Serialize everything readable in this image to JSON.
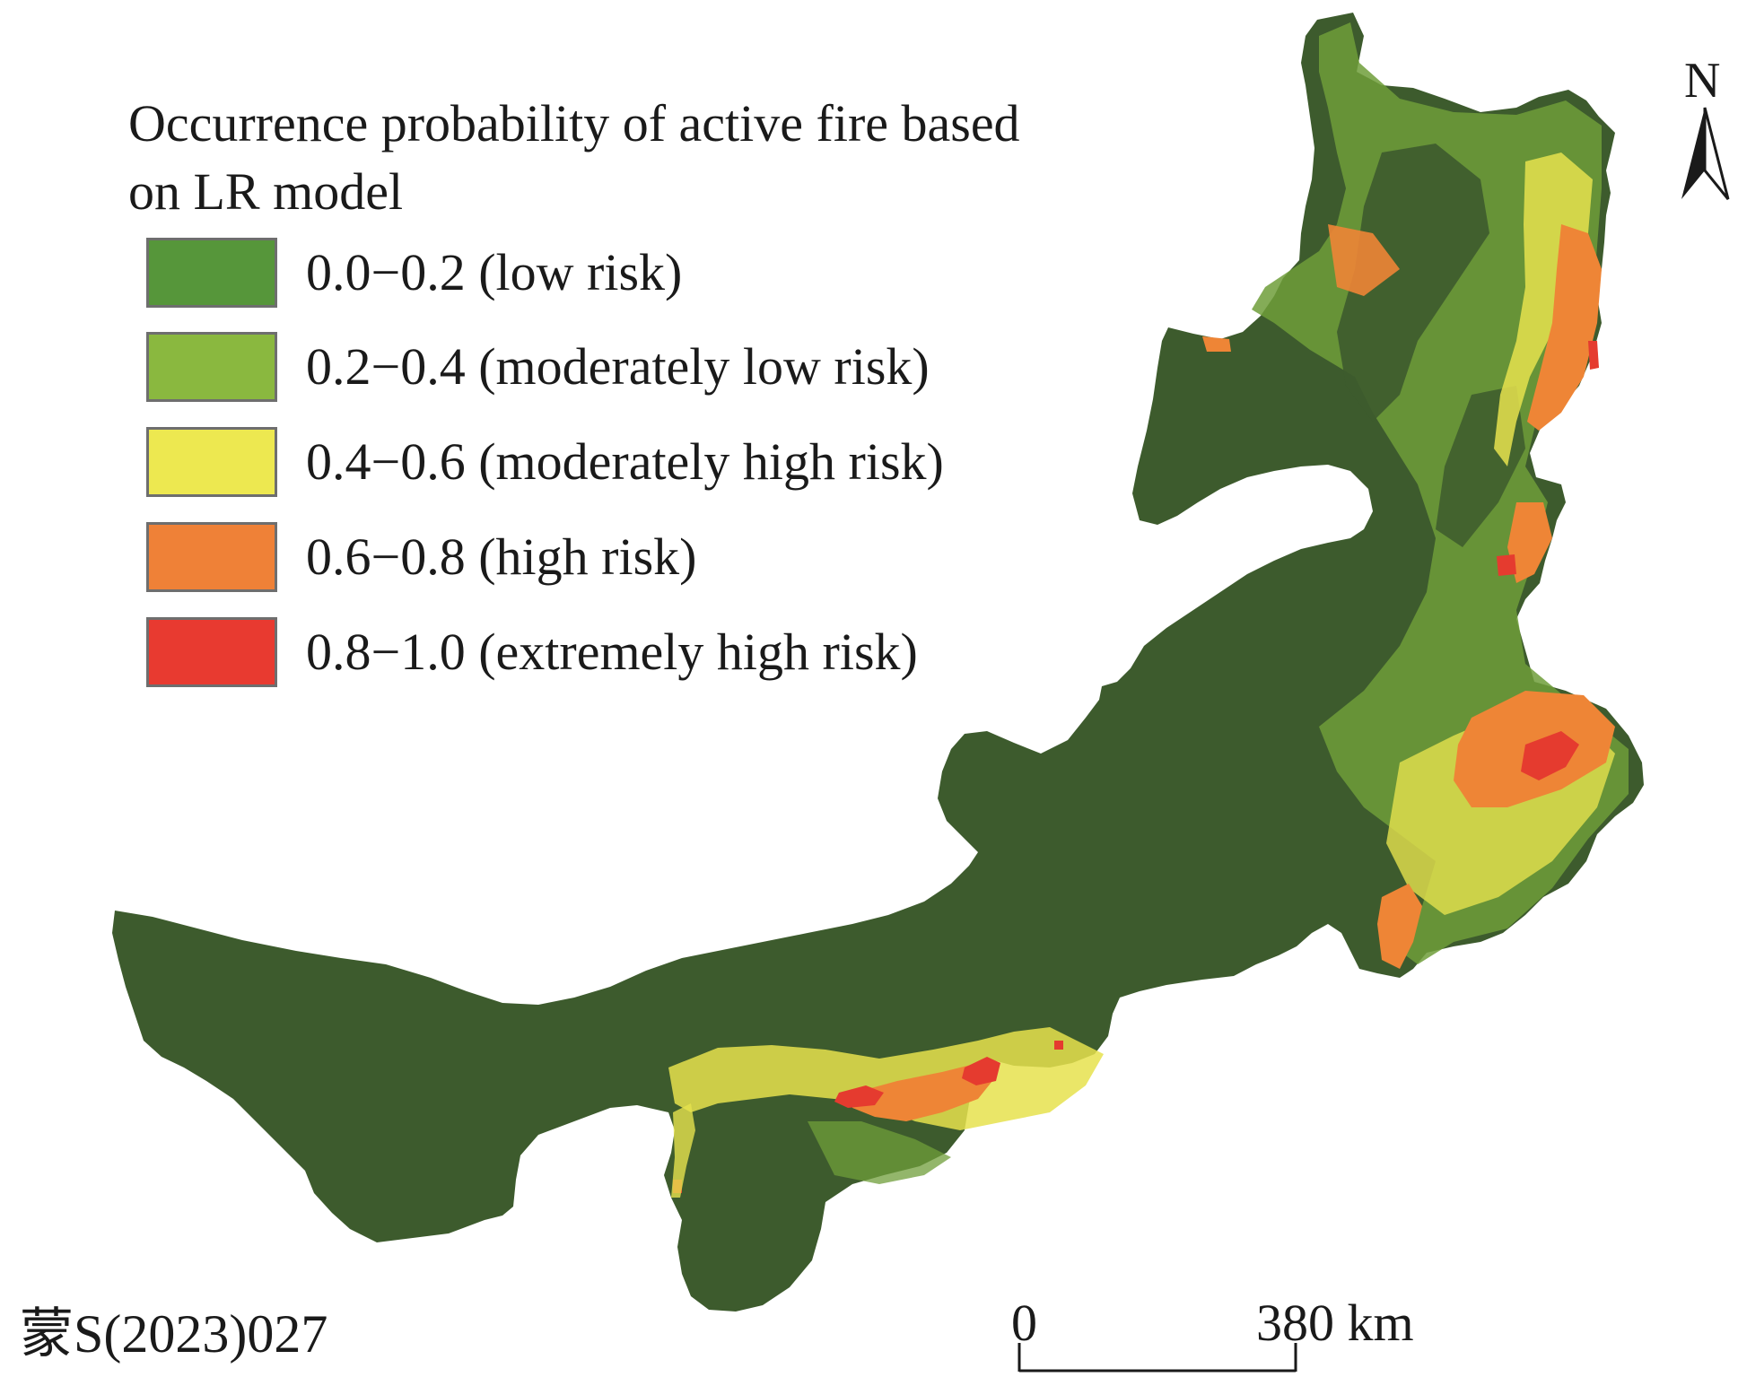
{
  "legend": {
    "title": "Occurrence probability of active fire based on LR model",
    "items": [
      {
        "label": "0.0−0.2 (low risk)",
        "color": "#56963a"
      },
      {
        "label": "0.2−0.4 (moderately low risk)",
        "color": "#8ab83f"
      },
      {
        "label": "0.4−0.6 (moderately high risk)",
        "color": "#ede850"
      },
      {
        "label": "0.6−0.8 (high risk)",
        "color": "#ef8137"
      },
      {
        "label": "0.8−1.0 (extremely high risk)",
        "color": "#e83a30"
      }
    ]
  },
  "north_arrow": {
    "label": "N",
    "icon": "north-arrow-icon"
  },
  "scale_bar": {
    "start_label": "0",
    "end_label": "380 km"
  },
  "map_approval_number": "蒙S(2023)027",
  "colors": {
    "region_base": "#3d5b2d",
    "region_light": "#6f9e3a",
    "moderately_high": "#e6e24e",
    "high": "#ee8536",
    "extreme": "#e53b2f"
  }
}
